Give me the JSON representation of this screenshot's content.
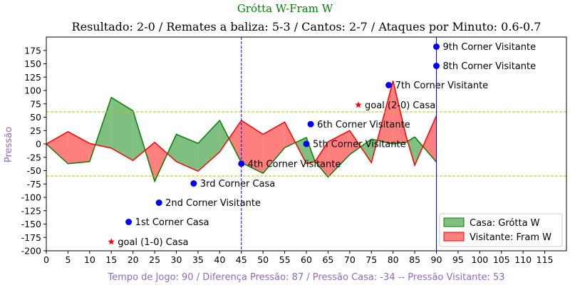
{
  "chart_data": {
    "type": "area",
    "title": "Grótta W-Fram W",
    "subtitle": "Resultado: 2-0 / Remates a baliza: 5-3 / Cantos: 2-7 / Ataques por Minuto: 0.6-0.7",
    "xlabel": "Tempo de Jogo: 90 / Diferença Pressão: 87 / Pressão Casa: -34 -- Pressão Visitante: 53",
    "ylabel": "Pressão",
    "xlim": [
      0,
      120
    ],
    "ylim": [
      -200,
      200
    ],
    "x_ticks": [
      0,
      5,
      10,
      15,
      20,
      25,
      30,
      35,
      40,
      45,
      50,
      55,
      60,
      65,
      70,
      75,
      80,
      85,
      90,
      95,
      100,
      105,
      110,
      115
    ],
    "y_ticks": [
      -200,
      -175,
      -150,
      -125,
      -100,
      -75,
      -50,
      -25,
      0,
      25,
      50,
      75,
      100,
      125,
      150,
      175
    ],
    "series": [
      {
        "name": "Casa: Grótta W",
        "color": "#008000",
        "fill": "#7fbf7f",
        "x": [
          0,
          5,
          10,
          15,
          20,
          25,
          30,
          35,
          40,
          45,
          50,
          55,
          60,
          62,
          65,
          70,
          75,
          80,
          83,
          85,
          90
        ],
        "values": [
          0,
          -37,
          -33,
          87,
          62,
          -70,
          18,
          1,
          44,
          -35,
          -55,
          -7,
          12,
          -33,
          -62,
          -20,
          9,
          0,
          3,
          13,
          -34
        ]
      },
      {
        "name": "Visitante: Fram W",
        "color": "#ff0000",
        "fill": "#ff7f7f",
        "x": [
          0,
          5,
          10,
          15,
          20,
          25,
          30,
          35,
          40,
          45,
          50,
          55,
          60,
          62,
          65,
          70,
          75,
          80,
          83,
          85,
          90
        ],
        "values": [
          0,
          23,
          1,
          -8,
          -31,
          3,
          -33,
          -51,
          -15,
          44,
          18,
          41,
          -37,
          -33,
          4,
          25,
          -35,
          118,
          15,
          -40,
          53
        ]
      }
    ],
    "reference_lines": {
      "horizontal": [
        {
          "y": 60,
          "color": "#bfbf00"
        },
        {
          "y": -60,
          "color": "#bfbf00"
        }
      ],
      "vertical": [
        {
          "x": 45,
          "color": "#0000ff",
          "style": "dashed"
        },
        {
          "x": 90,
          "color": "#0000ff",
          "style": "solid"
        }
      ]
    },
    "annotations": [
      {
        "x": 15,
        "y": -183,
        "marker": "star",
        "color": "#ff0000",
        "label": "goal (1-0) Casa"
      },
      {
        "x": 19,
        "y": -146,
        "marker": "dot",
        "color": "#0000ff",
        "label": "1st Corner Casa"
      },
      {
        "x": 26,
        "y": -110,
        "marker": "dot",
        "color": "#0000ff",
        "label": "2nd Corner Visitante"
      },
      {
        "x": 34,
        "y": -74,
        "marker": "dot",
        "color": "#0000ff",
        "label": "3rd Corner Casa"
      },
      {
        "x": 45,
        "y": -37,
        "marker": "dot",
        "color": "#0000ff",
        "label": "4th Corner Visitante"
      },
      {
        "x": 60,
        "y": 0,
        "marker": "dot",
        "color": "#0000ff",
        "label": "5th Corner Visitante"
      },
      {
        "x": 61,
        "y": 37,
        "marker": "dot",
        "color": "#0000ff",
        "label": "6th Corner Visitante"
      },
      {
        "x": 72,
        "y": 73,
        "marker": "star",
        "color": "#ff0000",
        "label": "goal (2-0) Casa"
      },
      {
        "x": 79,
        "y": 110,
        "marker": "dot",
        "color": "#0000ff",
        "label": "7th Corner Visitante"
      },
      {
        "x": 90,
        "y": 146,
        "marker": "dot",
        "color": "#0000ff",
        "label": "8th Corner Visitante"
      },
      {
        "x": 90,
        "y": 182,
        "marker": "dot",
        "color": "#0000ff",
        "label": "9th Corner Visitante"
      }
    ],
    "legend": {
      "position": "bottom-right",
      "entries": [
        "Casa: Grótta W",
        "Visitante: Fram W"
      ]
    },
    "grid": false
  }
}
